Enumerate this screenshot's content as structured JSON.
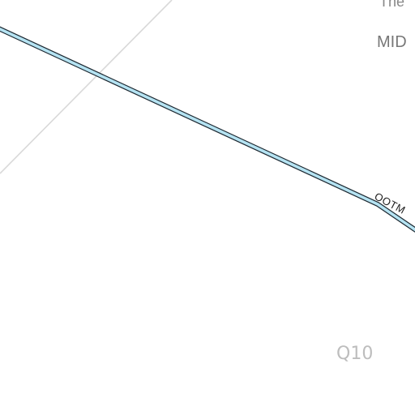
{
  "map": {
    "labels": {
      "top_partial": "The",
      "district": "MID",
      "road": "OOTM",
      "grid_ref": "Q10"
    },
    "colors": {
      "background": "#ffffff",
      "road_fill": "#b5e3f2",
      "road_casing": "#1e2a33",
      "minor_line": "#d9d9d9",
      "label_gray": "#777777",
      "grid_label": "#bdbdbd"
    }
  }
}
